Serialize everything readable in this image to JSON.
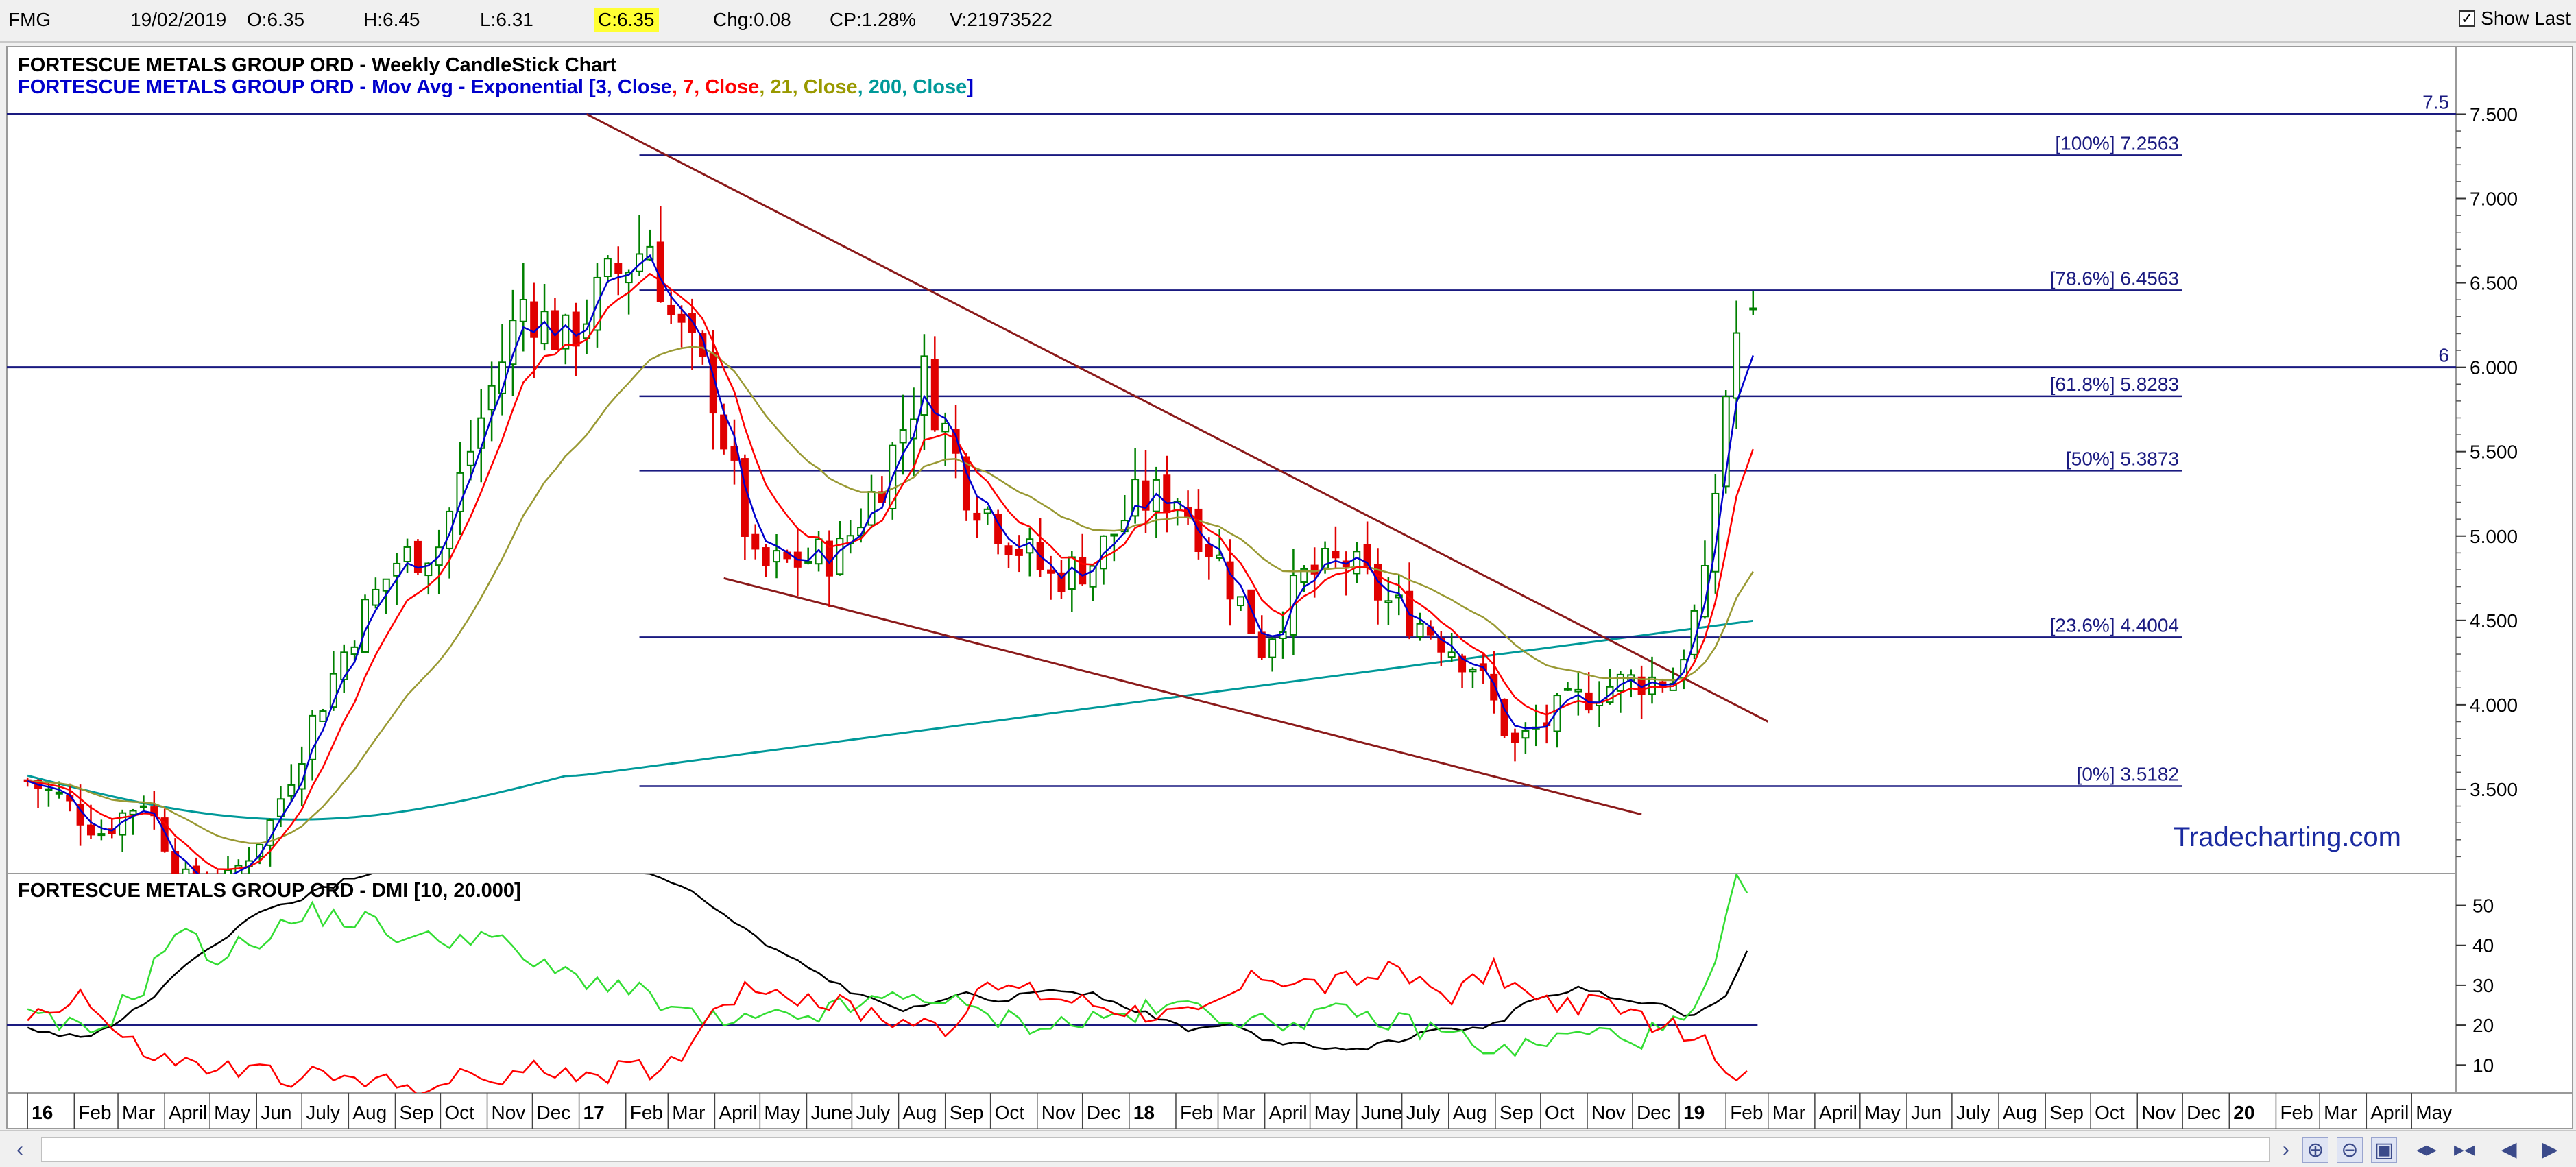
{
  "toolbar": {
    "symbol": "FMG",
    "date": "19/02/2019",
    "open": "O:6.35",
    "high": "H:6.45",
    "low": "L:6.31",
    "close": "C:6.35",
    "change": "Chg:0.08",
    "change_pct": "CP:1.28%",
    "volume": "V:21973522",
    "show_last_label": "Show Last",
    "show_last_checked": true
  },
  "main_panel": {
    "title_line1": "FORTESCUE METALS GROUP ORD - Weekly CandleStick Chart",
    "title_line2_prefix": "FORTESCUE METALS GROUP ORD - Mov Avg - Exponential [",
    "ema_labels": [
      {
        "text": "3, Close",
        "color": "#0000cc"
      },
      {
        "text": "7, Close",
        "color": "#ff0000"
      },
      {
        "text": "21, Close",
        "color": "#999900"
      },
      {
        "text": "200, Close",
        "color": "#009999"
      }
    ],
    "watermark": "Tradecharting.com",
    "y_ticks": [
      "7.500",
      "7.000",
      "6.500",
      "6.000",
      "5.500",
      "5.000",
      "4.500",
      "4.000",
      "3.500"
    ],
    "horizontal_lines": [
      {
        "label": "7.5",
        "value": 7.5
      },
      {
        "label": "6",
        "value": 6.0
      }
    ],
    "fibonacci": [
      {
        "label": "[100%] 7.2563",
        "value": 7.2563
      },
      {
        "label": "[78.6%] 6.4563",
        "value": 6.4563
      },
      {
        "label": "[61.8%] 5.8283",
        "value": 5.8283
      },
      {
        "label": "[50%] 5.3873",
        "value": 5.3873
      },
      {
        "label": "[23.6%] 4.4004",
        "value": 4.4004
      },
      {
        "label": "[0%] 3.5182",
        "value": 3.5182
      }
    ]
  },
  "dmi_panel": {
    "title": "FORTESCUE METALS GROUP ORD - DMI [10, 20.000]",
    "y_ticks": [
      "50",
      "40",
      "30",
      "20",
      "10"
    ],
    "threshold": 20
  },
  "x_axis": {
    "labels": [
      {
        "text": "16",
        "bold": true
      },
      {
        "text": "Feb"
      },
      {
        "text": "Mar"
      },
      {
        "text": "April"
      },
      {
        "text": "May"
      },
      {
        "text": "Jun"
      },
      {
        "text": "July"
      },
      {
        "text": "Aug"
      },
      {
        "text": "Sep"
      },
      {
        "text": "Oct"
      },
      {
        "text": "Nov"
      },
      {
        "text": "Dec"
      },
      {
        "text": "17",
        "bold": true
      },
      {
        "text": "Feb"
      },
      {
        "text": "Mar"
      },
      {
        "text": "April"
      },
      {
        "text": "May"
      },
      {
        "text": "June"
      },
      {
        "text": "July"
      },
      {
        "text": "Aug"
      },
      {
        "text": "Sep"
      },
      {
        "text": "Oct"
      },
      {
        "text": "Nov"
      },
      {
        "text": "Dec"
      },
      {
        "text": "18",
        "bold": true
      },
      {
        "text": "Feb"
      },
      {
        "text": "Mar"
      },
      {
        "text": "April"
      },
      {
        "text": "May"
      },
      {
        "text": "June"
      },
      {
        "text": "July"
      },
      {
        "text": "Aug"
      },
      {
        "text": "Sep"
      },
      {
        "text": "Oct"
      },
      {
        "text": "Nov"
      },
      {
        "text": "Dec"
      },
      {
        "text": "19",
        "bold": true
      },
      {
        "text": "Feb"
      },
      {
        "text": "Mar"
      },
      {
        "text": "April"
      },
      {
        "text": "May"
      },
      {
        "text": "Jun"
      },
      {
        "text": "July"
      },
      {
        "text": "Aug"
      },
      {
        "text": "Sep"
      },
      {
        "text": "Oct"
      },
      {
        "text": "Nov"
      },
      {
        "text": "Dec"
      },
      {
        "text": "20",
        "bold": true
      },
      {
        "text": "Feb"
      },
      {
        "text": "Mar"
      },
      {
        "text": "April"
      },
      {
        "text": "May"
      }
    ]
  },
  "colors": {
    "ema3": "#0000cc",
    "ema7": "#ff0000",
    "ema21": "#999933",
    "ema200": "#009999",
    "bull": "#008000",
    "bear": "#e00000",
    "level_line": "#1a1a80",
    "trend_line": "#8b1a1a",
    "adx": "#000000",
    "plus_di": "#33dd33",
    "minus_di": "#ff0000"
  },
  "chart_data": [
    {
      "type": "candlestick",
      "title": "FORTESCUE METALS GROUP ORD - Weekly CandleStick Chart",
      "timeframe": "weekly",
      "ylim": [
        3.0,
        7.9
      ],
      "anchors": [
        {
          "date": "2016-01-01",
          "close": 3.55
        },
        {
          "date": "2016-01-22",
          "close": 3.45
        },
        {
          "date": "2016-02-19",
          "close": 3.25
        },
        {
          "date": "2016-03-18",
          "close": 3.45
        },
        {
          "date": "2016-04-15",
          "close": 2.95
        },
        {
          "date": "2016-05-13",
          "close": 2.95
        },
        {
          "date": "2016-06-10",
          "close": 3.3
        },
        {
          "date": "2016-07-08",
          "close": 3.9
        },
        {
          "date": "2016-08-05",
          "close": 4.45
        },
        {
          "date": "2016-09-02",
          "close": 4.85
        },
        {
          "date": "2016-09-30",
          "close": 4.95
        },
        {
          "date": "2016-10-28",
          "close": 5.7
        },
        {
          "date": "2016-11-25",
          "close": 6.4
        },
        {
          "date": "2016-12-23",
          "close": 6.15
        },
        {
          "date": "2017-01-20",
          "close": 6.5
        },
        {
          "date": "2017-02-17",
          "close": 6.75
        },
        {
          "date": "2017-03-03",
          "close": 6.3
        },
        {
          "date": "2017-03-31",
          "close": 5.85
        },
        {
          "date": "2017-04-28",
          "close": 4.8
        },
        {
          "date": "2017-05-26",
          "close": 4.85
        },
        {
          "date": "2017-06-23",
          "close": 4.9
        },
        {
          "date": "2017-07-21",
          "close": 5.35
        },
        {
          "date": "2017-08-18",
          "close": 5.95
        },
        {
          "date": "2017-09-15",
          "close": 5.3
        },
        {
          "date": "2017-10-13",
          "close": 5.0
        },
        {
          "date": "2017-11-10",
          "close": 4.75
        },
        {
          "date": "2017-12-08",
          "close": 4.85
        },
        {
          "date": "2018-01-05",
          "close": 5.2
        },
        {
          "date": "2018-02-02",
          "close": 5.25
        },
        {
          "date": "2018-03-02",
          "close": 4.85
        },
        {
          "date": "2018-03-30",
          "close": 4.35
        },
        {
          "date": "2018-04-27",
          "close": 4.75
        },
        {
          "date": "2018-05-25",
          "close": 4.85
        },
        {
          "date": "2018-06-22",
          "close": 4.6
        },
        {
          "date": "2018-07-20",
          "close": 4.45
        },
        {
          "date": "2018-08-17",
          "close": 4.25
        },
        {
          "date": "2018-09-14",
          "close": 3.75
        },
        {
          "date": "2018-10-12",
          "close": 3.95
        },
        {
          "date": "2018-11-09",
          "close": 4.1
        },
        {
          "date": "2018-12-07",
          "close": 4.15
        },
        {
          "date": "2018-12-28",
          "close": 4.15
        },
        {
          "date": "2019-01-18",
          "close": 4.7
        },
        {
          "date": "2019-02-01",
          "close": 5.85
        },
        {
          "date": "2019-02-08",
          "close": 6.2
        },
        {
          "date": "2019-02-19",
          "close": 6.35
        }
      ],
      "last_bar": {
        "date": "2019-02-19",
        "open": 6.35,
        "high": 6.45,
        "low": 6.31,
        "close": 6.35
      },
      "ema_periods": [
        3,
        7,
        21,
        200
      ],
      "trend_lines": [
        {
          "name": "upper",
          "from": {
            "date": "2017-01-06",
            "value": 7.5
          },
          "to": {
            "date": "2019-03-01",
            "value": 3.9
          }
        },
        {
          "name": "lower",
          "from": {
            "date": "2017-04-07",
            "value": 4.75
          },
          "to": {
            "date": "2018-12-07",
            "value": 3.35
          }
        }
      ]
    },
    {
      "type": "line",
      "title": "FORTESCUE METALS GROUP ORD - DMI [10, 20.000]",
      "ylim": [
        3,
        58
      ],
      "series": [
        {
          "key": "adx",
          "anchors": [
            {
              "date": "2016-01-01",
              "value": 19
            },
            {
              "date": "2016-02-05",
              "value": 17
            },
            {
              "date": "2016-03-04",
              "value": 21
            },
            {
              "date": "2016-04-01",
              "value": 30
            },
            {
              "date": "2016-05-06",
              "value": 41
            },
            {
              "date": "2016-06-03",
              "value": 48
            },
            {
              "date": "2016-07-01",
              "value": 52
            },
            {
              "date": "2016-08-05",
              "value": 57
            },
            {
              "date": "2016-09-02",
              "value": 60
            },
            {
              "date": "2017-01-06",
              "value": 62
            },
            {
              "date": "2017-03-10",
              "value": 55
            },
            {
              "date": "2017-05-05",
              "value": 40
            },
            {
              "date": "2017-07-07",
              "value": 27
            },
            {
              "date": "2017-08-04",
              "value": 24
            },
            {
              "date": "2017-09-08",
              "value": 28
            },
            {
              "date": "2017-10-06",
              "value": 26
            },
            {
              "date": "2017-11-10",
              "value": 29
            },
            {
              "date": "2017-12-08",
              "value": 28
            },
            {
              "date": "2018-01-05",
              "value": 24
            },
            {
              "date": "2018-02-09",
              "value": 19
            },
            {
              "date": "2018-03-09",
              "value": 20
            },
            {
              "date": "2018-04-06",
              "value": 16
            },
            {
              "date": "2018-05-04",
              "value": 15
            },
            {
              "date": "2018-06-01",
              "value": 14
            },
            {
              "date": "2018-07-06",
              "value": 17
            },
            {
              "date": "2018-08-03",
              "value": 19
            },
            {
              "date": "2018-08-31",
              "value": 20
            },
            {
              "date": "2018-09-28",
              "value": 27
            },
            {
              "date": "2018-10-26",
              "value": 29
            },
            {
              "date": "2018-11-23",
              "value": 27
            },
            {
              "date": "2018-12-21",
              "value": 25
            },
            {
              "date": "2019-01-11",
              "value": 22
            },
            {
              "date": "2019-02-01",
              "value": 28
            },
            {
              "date": "2019-02-19",
              "value": 42
            }
          ]
        },
        {
          "key": "plus_di",
          "anchors": [
            {
              "date": "2016-01-01",
              "value": 22
            },
            {
              "date": "2016-02-12",
              "value": 18
            },
            {
              "date": "2016-03-18",
              "value": 30
            },
            {
              "date": "2016-04-08",
              "value": 44
            },
            {
              "date": "2016-05-06",
              "value": 37
            },
            {
              "date": "2016-06-03",
              "value": 42
            },
            {
              "date": "2016-07-08",
              "value": 48
            },
            {
              "date": "2016-08-12",
              "value": 46
            },
            {
              "date": "2016-09-16",
              "value": 41
            },
            {
              "date": "2016-10-28",
              "value": 43
            },
            {
              "date": "2016-12-09",
              "value": 34
            },
            {
              "date": "2017-01-27",
              "value": 30
            },
            {
              "date": "2017-03-10",
              "value": 23
            },
            {
              "date": "2017-04-07",
              "value": 20
            },
            {
              "date": "2017-05-26",
              "value": 22
            },
            {
              "date": "2017-07-07",
              "value": 25
            },
            {
              "date": "2017-08-18",
              "value": 28
            },
            {
              "date": "2017-09-29",
              "value": 22
            },
            {
              "date": "2017-11-10",
              "value": 20
            },
            {
              "date": "2018-01-05",
              "value": 23
            },
            {
              "date": "2018-02-16",
              "value": 25
            },
            {
              "date": "2018-03-30",
              "value": 20
            },
            {
              "date": "2018-05-11",
              "value": 23
            },
            {
              "date": "2018-06-22",
              "value": 21
            },
            {
              "date": "2018-08-03",
              "value": 18
            },
            {
              "date": "2018-09-07",
              "value": 13
            },
            {
              "date": "2018-10-05",
              "value": 16
            },
            {
              "date": "2018-11-02",
              "value": 18
            },
            {
              "date": "2018-12-07",
              "value": 17
            },
            {
              "date": "2019-01-11",
              "value": 22
            },
            {
              "date": "2019-01-25",
              "value": 35
            },
            {
              "date": "2019-02-08",
              "value": 55
            },
            {
              "date": "2019-02-19",
              "value": 51
            }
          ]
        },
        {
          "key": "minus_di",
          "anchors": [
            {
              "date": "2016-01-01",
              "value": 22
            },
            {
              "date": "2016-02-05",
              "value": 28
            },
            {
              "date": "2016-03-04",
              "value": 16
            },
            {
              "date": "2016-04-01",
              "value": 11
            },
            {
              "date": "2016-05-06",
              "value": 9
            },
            {
              "date": "2016-06-03",
              "value": 8
            },
            {
              "date": "2016-07-01",
              "value": 7
            },
            {
              "date": "2016-08-05",
              "value": 6
            },
            {
              "date": "2016-09-02",
              "value": 5
            },
            {
              "date": "2016-10-07",
              "value": 6
            },
            {
              "date": "2016-11-11",
              "value": 7
            },
            {
              "date": "2016-12-16",
              "value": 9
            },
            {
              "date": "2017-01-20",
              "value": 8
            },
            {
              "date": "2017-03-03",
              "value": 10
            },
            {
              "date": "2017-04-07",
              "value": 27
            },
            {
              "date": "2017-05-05",
              "value": 30
            },
            {
              "date": "2017-06-09",
              "value": 26
            },
            {
              "date": "2017-07-21",
              "value": 22
            },
            {
              "date": "2017-09-01",
              "value": 20
            },
            {
              "date": "2017-10-06",
              "value": 30
            },
            {
              "date": "2017-11-17",
              "value": 27
            },
            {
              "date": "2018-01-05",
              "value": 24
            },
            {
              "date": "2018-02-16",
              "value": 22
            },
            {
              "date": "2018-03-30",
              "value": 33
            },
            {
              "date": "2018-05-11",
              "value": 30
            },
            {
              "date": "2018-06-22",
              "value": 33
            },
            {
              "date": "2018-08-03",
              "value": 28
            },
            {
              "date": "2018-08-31",
              "value": 34
            },
            {
              "date": "2018-09-28",
              "value": 26
            },
            {
              "date": "2018-11-02",
              "value": 25
            },
            {
              "date": "2018-12-07",
              "value": 22
            },
            {
              "date": "2019-01-11",
              "value": 17
            },
            {
              "date": "2019-02-08",
              "value": 8
            },
            {
              "date": "2019-02-19",
              "value": 7
            }
          ]
        }
      ]
    }
  ]
}
